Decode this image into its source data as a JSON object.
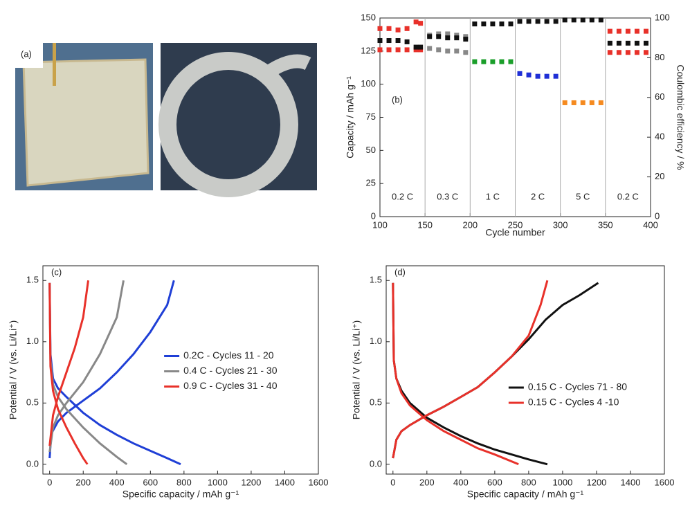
{
  "panel_a": {
    "label": "(a)"
  },
  "chart_data": [
    {
      "type": "scatter",
      "panel_label": "(b)",
      "x_label": "Cycle number",
      "y_label": "Capacity / mAh g⁻¹",
      "y2_label": "Coulombic efficiency / %",
      "xlim": [
        100,
        400
      ],
      "xticks": [
        100,
        150,
        200,
        250,
        300,
        350,
        400
      ],
      "ylim": [
        0,
        150
      ],
      "yticks": [
        0,
        25,
        50,
        75,
        100,
        125,
        150
      ],
      "y2lim": [
        0,
        100
      ],
      "y2ticks": [
        0,
        20,
        40,
        60,
        80,
        100
      ],
      "rate_boundaries": [
        100,
        150,
        200,
        250,
        300,
        350,
        400
      ],
      "rate_labels": [
        "0.2 C",
        "0.3 C",
        "1 C",
        "2 C",
        "5 C",
        "0.2 C"
      ],
      "series": [
        {
          "color": "#e8312a",
          "x": [
            100,
            110,
            120,
            130,
            140,
            145,
            355,
            365,
            375,
            385,
            395
          ],
          "values": [
            142,
            142,
            141,
            142,
            147,
            146,
            140,
            140,
            140,
            140,
            140
          ]
        },
        {
          "color": "#e8312a",
          "x": [
            100,
            110,
            120,
            130,
            140,
            145,
            355,
            365,
            375,
            385,
            395
          ],
          "values": [
            126,
            126,
            126,
            126,
            126,
            126,
            124,
            124,
            124,
            124,
            124
          ]
        },
        {
          "color": "#111111",
          "x": [
            100,
            110,
            120,
            130,
            140,
            145,
            355,
            365,
            375,
            385,
            395
          ],
          "values": [
            133,
            133,
            133,
            132,
            128,
            128,
            131,
            131,
            131,
            131,
            131
          ]
        },
        {
          "color": "#888888",
          "x": [
            155,
            165,
            175,
            185,
            195
          ],
          "values": [
            137,
            138,
            138,
            137,
            136
          ]
        },
        {
          "color": "#111111",
          "x": [
            155,
            165,
            175,
            185,
            195
          ],
          "values": [
            136,
            136,
            135,
            135,
            134
          ]
        },
        {
          "color": "#888888",
          "x": [
            155,
            165,
            175,
            185,
            195
          ],
          "values": [
            127,
            126,
            125,
            125,
            124
          ]
        },
        {
          "color": "#1a9e2a",
          "x": [
            205,
            215,
            225,
            235,
            245
          ],
          "values": [
            117,
            117,
            117,
            117,
            117
          ]
        },
        {
          "color": "#1f2fd6",
          "x": [
            255,
            265,
            275,
            285,
            295
          ],
          "values": [
            108,
            107,
            106,
            106,
            106
          ]
        },
        {
          "color": "#f58a1f",
          "x": [
            305,
            315,
            325,
            335,
            345
          ],
          "values": [
            86,
            86,
            86,
            86,
            86
          ]
        },
        {
          "color": "#111111",
          "axis": "y2",
          "x": [
            205,
            215,
            225,
            235,
            245,
            255,
            265,
            275,
            285,
            295,
            305,
            315,
            325,
            335,
            345
          ],
          "values": [
            97,
            97,
            97,
            97,
            97,
            98.3,
            98.3,
            98.3,
            98.3,
            98.3,
            99,
            99,
            99,
            99,
            99
          ]
        }
      ]
    },
    {
      "type": "line",
      "panel_label": "(c)",
      "x_label": "Specific capacity / mAh g⁻¹",
      "y_label": "Potential / V (vs. Li/Li⁺)",
      "xlim": [
        -40,
        1600
      ],
      "xticks": [
        0,
        200,
        400,
        600,
        800,
        1000,
        1200,
        1400,
        1600
      ],
      "ylim": [
        -0.08,
        1.62
      ],
      "yticks": [
        {
          "value": 0,
          "label": "0.0"
        },
        0.5,
        {
          "value": 1,
          "label": "1.0"
        },
        1.5
      ],
      "legend": "center right",
      "series": [
        {
          "name": "0.2C - Cycles 11 - 20",
          "color": "#1f3fd6",
          "x": [
            0,
            5,
            20,
            50,
            100,
            200,
            300,
            400,
            500,
            600,
            700,
            780,
            null,
            0,
            10,
            50,
            100,
            200,
            300,
            400,
            500,
            600,
            700,
            740
          ],
          "values": [
            1.48,
            0.9,
            0.7,
            0.62,
            0.55,
            0.42,
            0.32,
            0.24,
            0.17,
            0.11,
            0.05,
            0.0,
            null,
            0.05,
            0.25,
            0.35,
            0.42,
            0.52,
            0.62,
            0.75,
            0.9,
            1.08,
            1.3,
            1.5
          ]
        },
        {
          "name": "0.4 C - Cycles 21 - 30",
          "color": "#888888",
          "x": [
            0,
            5,
            20,
            50,
            100,
            200,
            300,
            400,
            460,
            null,
            0,
            20,
            50,
            100,
            200,
            300,
            400,
            440
          ],
          "values": [
            1.48,
            0.85,
            0.65,
            0.55,
            0.45,
            0.3,
            0.17,
            0.06,
            0.0,
            null,
            0.1,
            0.3,
            0.4,
            0.5,
            0.67,
            0.9,
            1.2,
            1.5
          ]
        },
        {
          "name": "0.9 C - Cycles 31 - 40",
          "color": "#e8312a",
          "x": [
            0,
            5,
            20,
            50,
            100,
            150,
            200,
            225,
            null,
            0,
            20,
            50,
            100,
            150,
            200,
            230
          ],
          "values": [
            1.48,
            0.8,
            0.6,
            0.45,
            0.3,
            0.17,
            0.05,
            0.0,
            null,
            0.15,
            0.4,
            0.55,
            0.75,
            0.95,
            1.2,
            1.5
          ]
        }
      ]
    },
    {
      "type": "line",
      "panel_label": "(d)",
      "x_label": "Specific capacity / mAh g⁻¹",
      "y_label": "Potential / V (vs. Li/Li⁺)",
      "xlim": [
        -40,
        1600
      ],
      "xticks": [
        0,
        200,
        400,
        600,
        800,
        1000,
        1200,
        1400,
        1600
      ],
      "ylim": [
        -0.08,
        1.62
      ],
      "yticks": [
        {
          "value": 0,
          "label": "0.0"
        },
        0.5,
        {
          "value": 1,
          "label": "1.0"
        },
        1.5
      ],
      "legend": "lower right",
      "series": [
        {
          "name": "0.15 C - Cycles 71 - 80",
          "color": "#111111",
          "x": [
            0,
            5,
            20,
            50,
            100,
            200,
            300,
            400,
            500,
            600,
            700,
            800,
            910,
            null,
            0,
            20,
            50,
            100,
            200,
            300,
            400,
            500,
            600,
            700,
            800,
            900,
            1000,
            1100,
            1210
          ],
          "values": [
            1.48,
            0.85,
            0.7,
            0.6,
            0.5,
            0.38,
            0.3,
            0.23,
            0.17,
            0.12,
            0.08,
            0.04,
            0.0,
            null,
            0.05,
            0.2,
            0.27,
            0.32,
            0.4,
            0.47,
            0.55,
            0.63,
            0.75,
            0.88,
            1.02,
            1.18,
            1.3,
            1.38,
            1.48
          ]
        },
        {
          "name": "0.15 C - Cycles 4 -10",
          "color": "#e8312a",
          "x": [
            0,
            5,
            20,
            50,
            100,
            200,
            300,
            400,
            500,
            600,
            740,
            null,
            0,
            20,
            50,
            100,
            200,
            300,
            400,
            500,
            600,
            700,
            800,
            870,
            910
          ],
          "values": [
            1.48,
            0.85,
            0.7,
            0.58,
            0.48,
            0.36,
            0.27,
            0.2,
            0.13,
            0.08,
            0.0,
            null,
            0.05,
            0.2,
            0.27,
            0.32,
            0.4,
            0.47,
            0.55,
            0.63,
            0.75,
            0.88,
            1.05,
            1.3,
            1.5
          ]
        }
      ]
    }
  ]
}
